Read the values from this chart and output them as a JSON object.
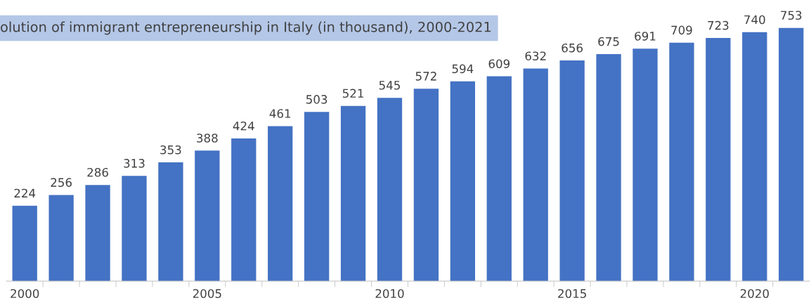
{
  "chart_data": {
    "type": "bar",
    "title": "olution of immigrant entrepreneurship in Italy (in thousand), 2000-2021",
    "categories": [
      "2000",
      null,
      null,
      null,
      null,
      "2005",
      null,
      null,
      null,
      null,
      "2010",
      null,
      null,
      null,
      null,
      "2015",
      null,
      null,
      null,
      null,
      "2020",
      null
    ],
    "values": [
      224,
      256,
      286,
      313,
      353,
      388,
      424,
      461,
      503,
      521,
      545,
      572,
      594,
      609,
      632,
      656,
      675,
      691,
      709,
      723,
      740,
      753
    ],
    "color": "#4472c4",
    "data_labels": true,
    "grid": false,
    "legend": false,
    "tick_labels": "x"
  }
}
